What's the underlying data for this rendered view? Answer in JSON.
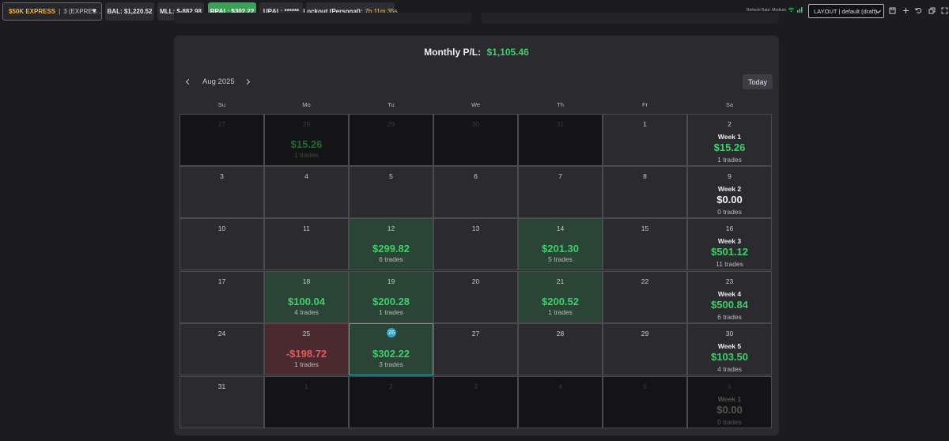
{
  "toolbar": {
    "account": {
      "name": "$50K EXPRESS",
      "separator": "|",
      "detail": "3 (EXPRES..."
    },
    "balance": "BAL: $1,220.52",
    "mll": "MLL: $-882.98",
    "rpl": "RP&L: $302.22",
    "upl": "UP&L: ******",
    "lockout_label": "Lockout (Personal):",
    "lockout_value": "7h 11m 35s",
    "refresh_rate": "Refresh Rate: Medium",
    "layout_select": "LAYOUT | default (draft)",
    "icons": [
      "save-icon",
      "plus-icon",
      "undo-icon",
      "window-icon",
      "expand-icon"
    ],
    "colors": {
      "account_name": "#f5b731",
      "rpl_bg": "#38a155",
      "lockout": "#f5c542"
    }
  },
  "calendar": {
    "monthly_label": "Monthly P/L:",
    "monthly_value": "$1,105.46",
    "month": "Aug 2025",
    "today_label": "Today",
    "weekdays": [
      "Su",
      "Mo",
      "Tu",
      "We",
      "Th",
      "Fr",
      "Sa"
    ],
    "colors": {
      "profit": "#3ecf6a",
      "loss": "#e8575a",
      "profit_bg": "#2a4435",
      "loss_bg": "#4a2a2f",
      "today_badge": "#29a7d4"
    },
    "weeks": [
      [
        {
          "day": "27",
          "outside": true
        },
        {
          "day": "28",
          "outside": true,
          "pnl": "$15.26",
          "trades": "1 trades"
        },
        {
          "day": "29",
          "outside": true
        },
        {
          "day": "30",
          "outside": true
        },
        {
          "day": "31",
          "outside": true
        },
        {
          "day": "1"
        },
        {
          "day": "2",
          "week": "Week 1",
          "week_pnl": "$15.26",
          "week_trades": "1 trades"
        }
      ],
      [
        {
          "day": "3"
        },
        {
          "day": "4"
        },
        {
          "day": "5"
        },
        {
          "day": "6"
        },
        {
          "day": "7"
        },
        {
          "day": "8"
        },
        {
          "day": "9",
          "week": "Week 2",
          "week_pnl": "$0.00",
          "week_trades": "0 trades",
          "zero": true
        }
      ],
      [
        {
          "day": "10"
        },
        {
          "day": "11"
        },
        {
          "day": "12",
          "pnl": "$299.82",
          "trades": "6 trades",
          "state": "pos"
        },
        {
          "day": "13"
        },
        {
          "day": "14",
          "pnl": "$201.30",
          "trades": "5 trades",
          "state": "pos"
        },
        {
          "day": "15"
        },
        {
          "day": "16",
          "week": "Week 3",
          "week_pnl": "$501.12",
          "week_trades": "11 trades"
        }
      ],
      [
        {
          "day": "17"
        },
        {
          "day": "18",
          "pnl": "$100.04",
          "trades": "4 trades",
          "state": "pos"
        },
        {
          "day": "19",
          "pnl": "$200.28",
          "trades": "1 trades",
          "state": "pos"
        },
        {
          "day": "20"
        },
        {
          "day": "21",
          "pnl": "$200.52",
          "trades": "1 trades",
          "state": "pos"
        },
        {
          "day": "22"
        },
        {
          "day": "23",
          "week": "Week 4",
          "week_pnl": "$500.84",
          "week_trades": "6 trades"
        }
      ],
      [
        {
          "day": "24"
        },
        {
          "day": "25",
          "pnl": "-$198.72",
          "trades": "1 trades",
          "state": "neg"
        },
        {
          "day": "26",
          "pnl": "$302.22",
          "trades": "3 trades",
          "state": "pos",
          "today": true
        },
        {
          "day": "27"
        },
        {
          "day": "28"
        },
        {
          "day": "29"
        },
        {
          "day": "30",
          "week": "Week 5",
          "week_pnl": "$103.50",
          "week_trades": "4 trades"
        }
      ],
      [
        {
          "day": "31"
        },
        {
          "day": "1",
          "outside": true
        },
        {
          "day": "2",
          "outside": true
        },
        {
          "day": "3",
          "outside": true
        },
        {
          "day": "4",
          "outside": true
        },
        {
          "day": "5",
          "outside": true
        },
        {
          "day": "6",
          "outside": true,
          "week": "Week 1",
          "week_pnl": "$0.00",
          "week_trades": "0 trades",
          "zero": true
        }
      ]
    ]
  }
}
